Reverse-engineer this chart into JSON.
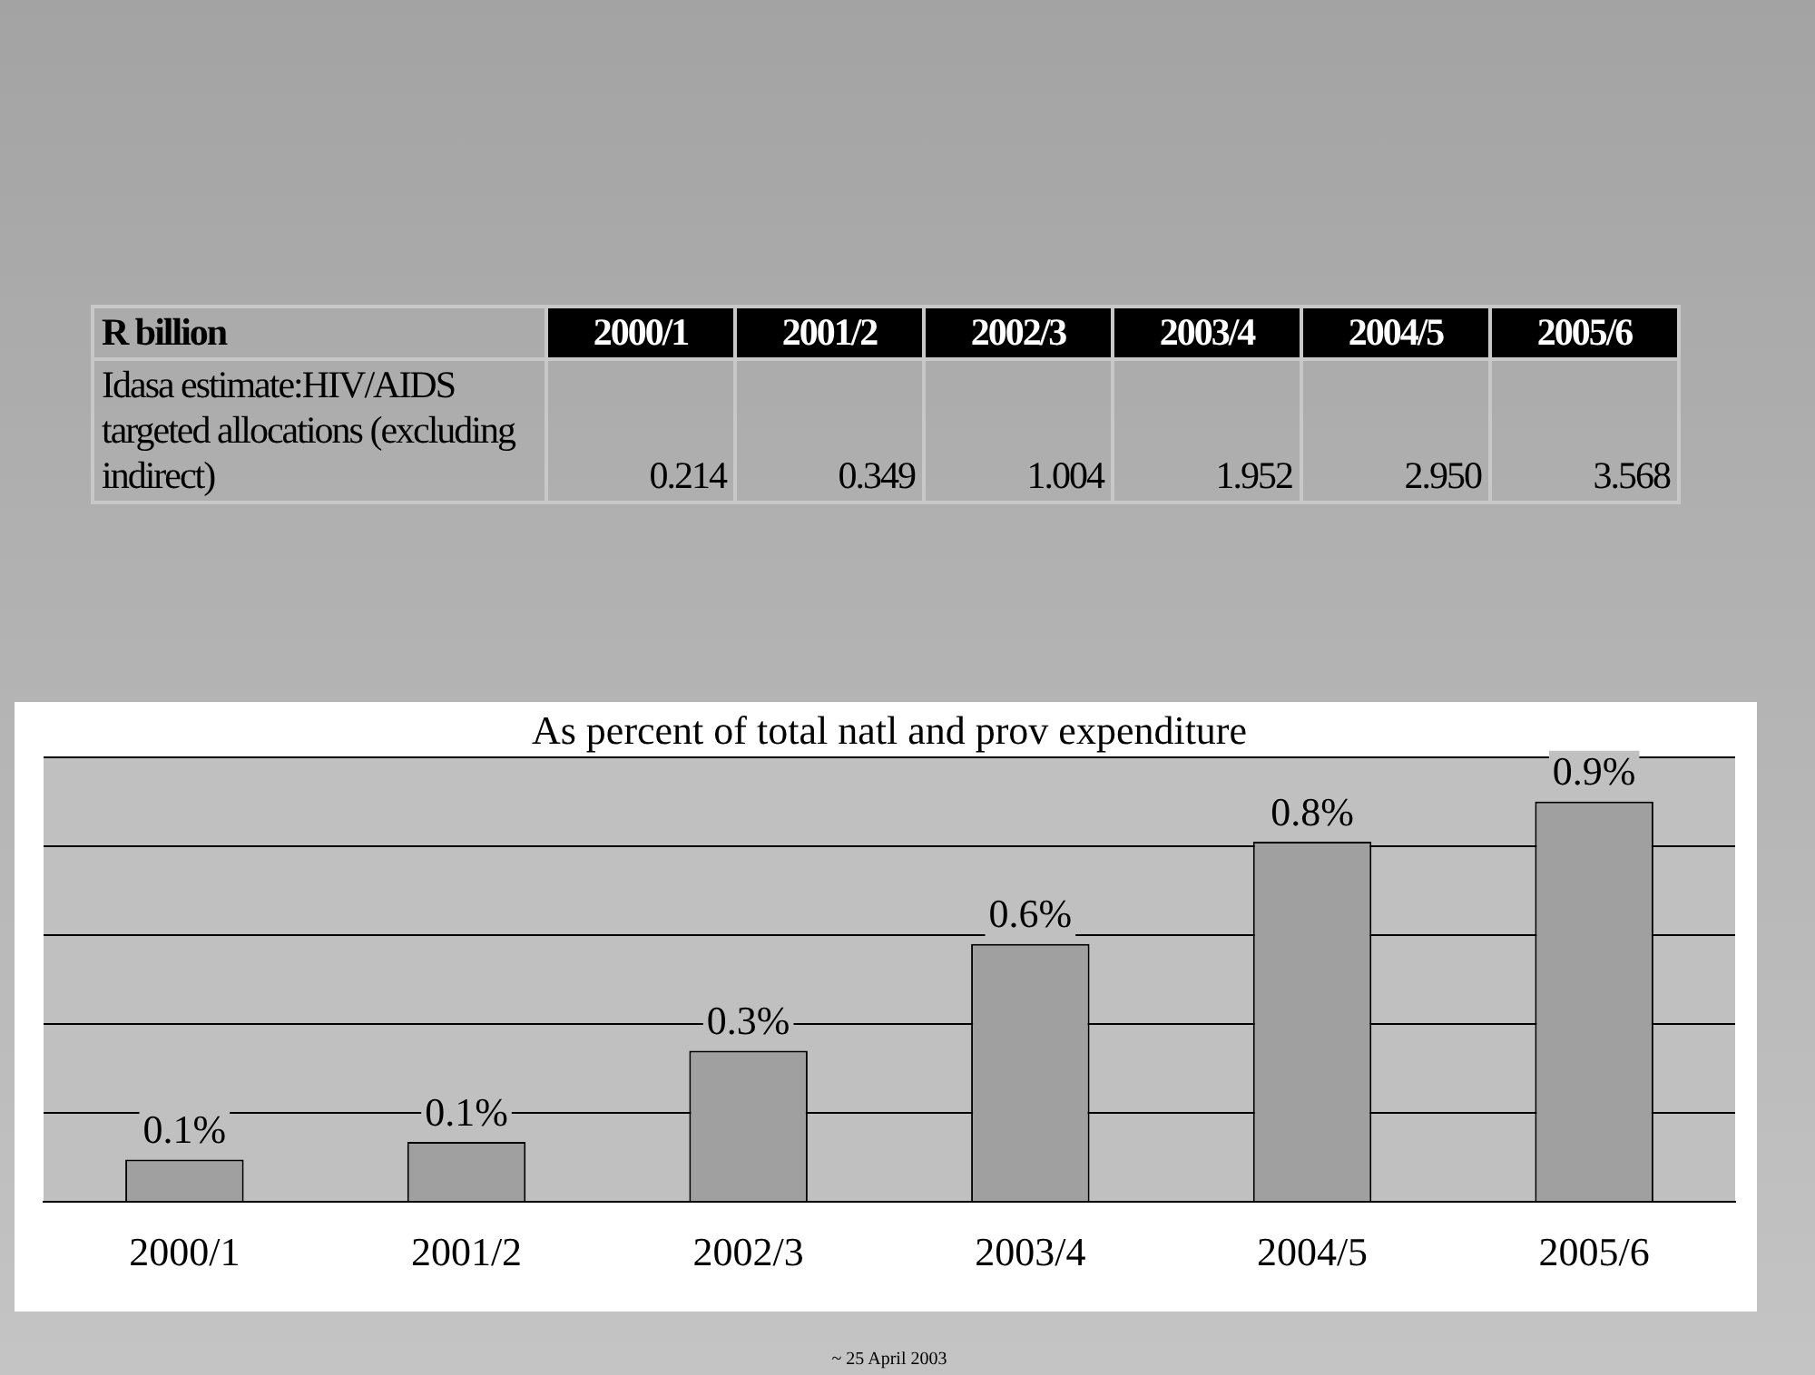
{
  "chart_data": [
    {
      "type": "other",
      "title": "R billion",
      "ylabel": "Idasa estimate:HIV/AIDS targeted allocations (excluding indirect)",
      "categories": [
        "2000/1",
        "2001/2",
        "2002/3",
        "2003/4",
        "2004/5",
        "2005/6"
      ],
      "values": [
        0.214,
        0.349,
        1.004,
        1.952,
        2.95,
        3.568
      ],
      "value_labels": [
        "0.214",
        "0.349",
        "1.004",
        "1.952",
        "2.950",
        "3.568"
      ]
    },
    {
      "type": "bar",
      "title": "As percent of total natl and prov expenditure",
      "categories": [
        "2000/1",
        "2001/2",
        "2002/3",
        "2003/4",
        "2004/5",
        "2005/6"
      ],
      "values": [
        0.095,
        0.135,
        0.34,
        0.58,
        0.81,
        0.9
      ],
      "value_labels": [
        "0.1%",
        "0.1%",
        "0.3%",
        "0.6%",
        "0.8%",
        "0.9%"
      ],
      "color": "#a0a0a0",
      "ylim": [
        0,
        1
      ],
      "yticks": [
        {
          "value": 0,
          "label": null
        },
        {
          "value": 0.2,
          "label": null
        },
        {
          "value": 0.4,
          "label": null
        },
        {
          "value": 0.6,
          "label": null
        },
        {
          "value": 0.8,
          "label": null
        },
        {
          "value": 1,
          "label": null
        }
      ],
      "grid": "y",
      "tick_labels": "x",
      "legend": false,
      "annotations": [
        "~ 25 April 2003"
      ]
    }
  ]
}
